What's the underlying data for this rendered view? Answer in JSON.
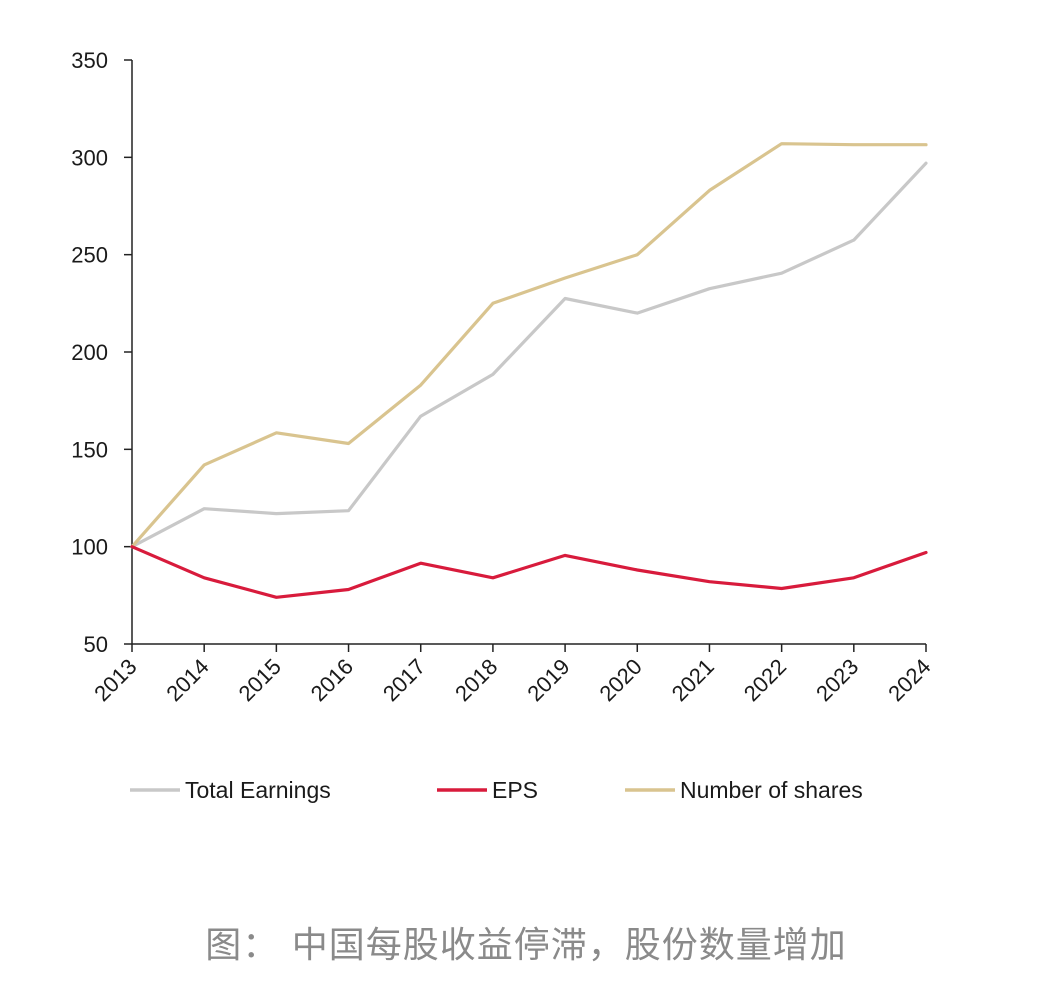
{
  "chart_data": {
    "type": "line",
    "title": "",
    "xlabel": "",
    "ylabel": "",
    "categories": [
      "2013",
      "2014",
      "2015",
      "2016",
      "2017",
      "2018",
      "2019",
      "2020",
      "2021",
      "2022",
      "2023",
      "2024"
    ],
    "series": [
      {
        "name": "Total Earnings",
        "color": "#c8c8c8",
        "values": [
          100,
          119.5,
          117,
          118.5,
          167,
          188.5,
          227.5,
          220,
          232.5,
          240.5,
          257.5,
          297
        ]
      },
      {
        "name": "EPS",
        "color": "#d81b3c",
        "values": [
          100,
          84,
          74,
          78,
          91.5,
          84,
          95.5,
          88,
          82,
          78.5,
          84,
          97
        ]
      },
      {
        "name": "Number of shares",
        "color": "#d9c48f",
        "values": [
          100,
          142,
          158.5,
          153,
          183,
          225,
          238,
          250,
          283,
          307,
          306.5,
          306.5
        ]
      }
    ],
    "ylim": [
      50,
      350
    ],
    "yticks": [
      50,
      100,
      150,
      200,
      250,
      300,
      350
    ],
    "grid": false,
    "legend_position": "bottom"
  },
  "caption": "图：  中国每股收益停滞，股份数量增加"
}
